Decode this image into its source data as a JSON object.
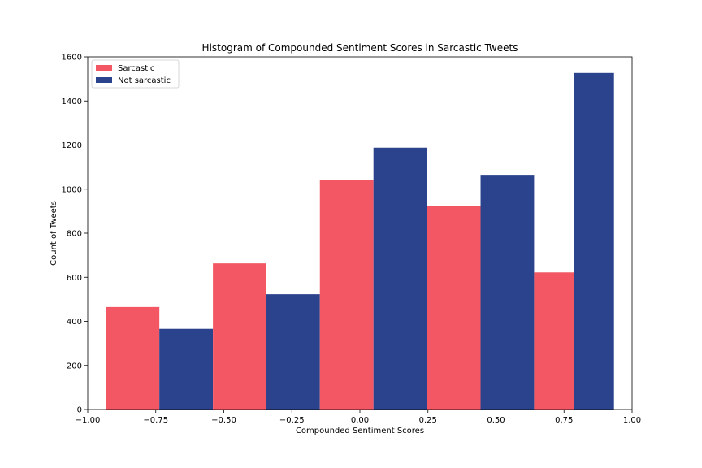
{
  "chart_data": {
    "type": "bar",
    "title": "Histogram of Compounded Sentiment Scores in Sarcastic Tweets",
    "xlabel": "Compounded Sentiment Scores",
    "ylabel": "Count of Tweets",
    "xlim": [
      -1.0,
      1.0
    ],
    "ylim": [
      0,
      1600
    ],
    "xticks": [
      -1.0,
      -0.75,
      -0.5,
      -0.25,
      0.0,
      0.25,
      0.5,
      0.75,
      1.0
    ],
    "xtick_labels": [
      "−1.00",
      "−0.75",
      "−0.50",
      "−0.25",
      "0.00",
      "0.25",
      "0.50",
      "0.75",
      "1.00"
    ],
    "yticks": [
      0,
      200,
      400,
      600,
      800,
      1000,
      1200,
      1400,
      1600
    ],
    "ytick_labels": [
      "0",
      "200",
      "400",
      "600",
      "800",
      "1000",
      "1200",
      "1400",
      "1600"
    ],
    "bin_edges": [
      -0.9336,
      -0.54,
      -0.147,
      0.2467,
      0.64,
      0.9335
    ],
    "series": [
      {
        "name": "Sarcastic",
        "color": "#f25763",
        "values": [
          465,
          663,
          1040,
          925,
          622
        ]
      },
      {
        "name": "Not sarcastic",
        "color": "#2b438c",
        "values": [
          366,
          523,
          1188,
          1065,
          1527
        ]
      }
    ],
    "legend_position": "upper-left",
    "grid": false
  }
}
